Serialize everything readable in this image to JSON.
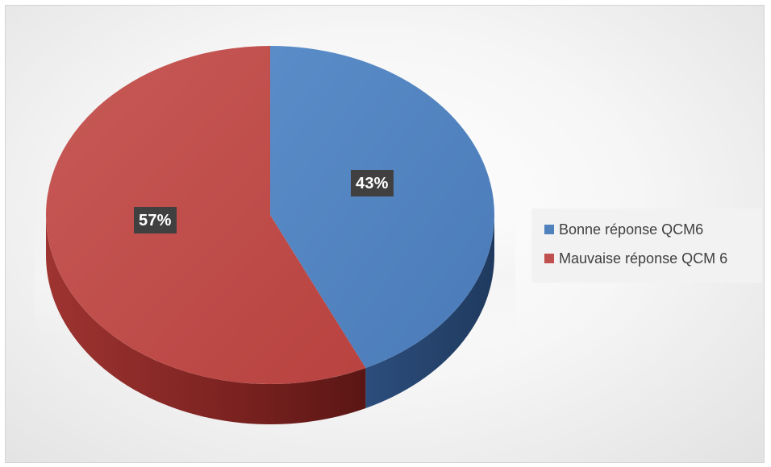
{
  "chart_data": {
    "type": "pie",
    "title": "",
    "categories": [
      "Bonne réponse QCM6",
      "Mauvaise réponse QCM 6"
    ],
    "values": [
      43,
      57
    ],
    "unit": "%",
    "data_labels": [
      "43%",
      "57%"
    ],
    "colors": [
      "#4f81bd",
      "#c0504d"
    ],
    "style": "3d",
    "legend_position": "right"
  }
}
